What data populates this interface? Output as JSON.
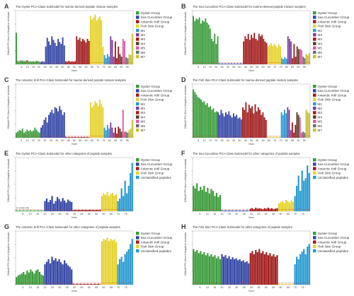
{
  "figure": {
    "panel_labels": [
      "A",
      "B",
      "C",
      "D",
      "E",
      "F",
      "G",
      "H"
    ]
  },
  "colors": {
    "oyster": "#3a9c3a",
    "sea_cucumber": "#3346a6",
    "krill": "#a01c1c",
    "fish_skin": "#e6d22c",
    "unclassified": "#2a9bd0",
    "M1": "#2a9bd0",
    "M2": "#7b3fa0",
    "M3": "#a01c1c",
    "M4": "#5b3a2a",
    "M5": "#d85aa8",
    "M6": "#6e6e6e",
    "M7": "#c7c136",
    "cutoff": "#d23a3a"
  },
  "legend_sets": {
    "mix": [
      "Oyster Group",
      "Sea Cucumber Group",
      "Antarctic Krill Group",
      "Fish Skin Group",
      "M1",
      "M2",
      "M3",
      "M4",
      "M5",
      "M6",
      "M7"
    ],
    "pep": [
      "Oyster Group",
      "Sea Cucumber Group",
      "Antarctic Krill Group",
      "Fish Skin Group",
      "Unclassified peptides"
    ]
  },
  "chart_data": [
    {
      "panel": "A",
      "type": "bar",
      "title": "The Oyster PCA-Class Submodel for marine-derived peptide mixture samples",
      "ylabel": "DModX^PS (Norm) Negative residuals",
      "xlabel": "Num",
      "legend": "mix",
      "cutoff_label": "D-Crit(0.05)",
      "segments": [
        {
          "group": "oyster",
          "values": [
            0.62,
            0.06,
            0.05,
            0.07,
            0.06,
            0.05,
            0.06,
            0.07,
            0.05,
            0.06,
            0.05,
            0.06,
            0.05,
            0.07,
            0.06,
            0.05
          ]
        },
        {
          "group": "sea_cucumber",
          "values": [
            0.05,
            0.06,
            0.05,
            0.35,
            0.52,
            0.45,
            0.38,
            0.55,
            0.48,
            0.42,
            0.36,
            0.5,
            0.44,
            0.4,
            0.53,
            0.37
          ]
        },
        {
          "group": "krill",
          "values": [
            0.06,
            0.05,
            0.07,
            0.05,
            0.06,
            0.05,
            0.06,
            0.55,
            0.48,
            0.52,
            0.45,
            0.5,
            0.47,
            0.43,
            0.5,
            0.46
          ]
        },
        {
          "group": "fish_skin",
          "values": [
            0.95,
            0.88,
            0.92,
            0.98,
            0.86,
            0.9,
            0.94,
            0.87,
            0.35
          ]
        },
        {
          "group": "M1",
          "values": [
            0.18,
            0.12,
            0.2,
            0.15
          ]
        },
        {
          "group": "M2",
          "values": [
            0.55,
            0.48,
            0.15
          ]
        },
        {
          "group": "M3",
          "values": [
            0.45,
            0.12,
            0.35
          ]
        },
        {
          "group": "M4",
          "values": [
            0.2,
            0.15
          ]
        },
        {
          "group": "M5",
          "values": [
            0.5,
            0.46
          ]
        },
        {
          "group": "M6",
          "values": [
            0.14,
            0.12
          ]
        },
        {
          "group": "M7",
          "values": [
            0.2,
            0.18,
            0.6
          ]
        }
      ]
    },
    {
      "panel": "B",
      "type": "bar",
      "title": "The Sea Cucumber PCA-Class Submodel for marine-derived peptide mixture samples",
      "ylabel": "DModX^PS (Norm) Negative residuals",
      "xlabel": "Num",
      "legend": "mix",
      "cutoff_label": "",
      "segments": [
        {
          "group": "oyster",
          "values": [
            0.95,
            0.85,
            0.9,
            0.88,
            0.92,
            0.8,
            0.86,
            0.84,
            0.9,
            0.82,
            0.78,
            0.7,
            0.5,
            0.45,
            0.6,
            0.4,
            0.55
          ]
        },
        {
          "group": "sea_cucumber",
          "values": [
            0.02,
            0.01,
            0.02,
            0.01,
            0.02,
            0.01,
            0.02,
            0.01,
            0.02,
            0.01,
            0.02,
            0.01,
            0.02,
            0.01,
            0.02,
            0.01
          ]
        },
        {
          "group": "krill",
          "values": [
            0.45,
            0.55,
            0.5,
            0.6,
            0.48,
            0.58,
            0.52,
            0.62,
            0.5,
            0.47,
            0.6,
            0.55,
            0.58,
            0.5,
            0.45,
            0.42
          ]
        },
        {
          "group": "fish_skin",
          "values": [
            0.35,
            0.38,
            0.42,
            0.36,
            0.4,
            0.37,
            0.33,
            0.39,
            0.35
          ]
        },
        {
          "group": "M1",
          "values": [
            0.12,
            0.1,
            0.14,
            0.11
          ]
        },
        {
          "group": "M2",
          "values": [
            0.55,
            0.5,
            0.45
          ]
        },
        {
          "group": "M3",
          "values": [
            0.12,
            0.4,
            0.15
          ]
        },
        {
          "group": "M4",
          "values": [
            0.35,
            0.3
          ]
        },
        {
          "group": "M5",
          "values": [
            0.3,
            0.28
          ]
        },
        {
          "group": "M6",
          "values": [
            0.15,
            0.12
          ]
        },
        {
          "group": "M7",
          "values": [
            0.2,
            0.18,
            0.22
          ]
        }
      ]
    },
    {
      "panel": "C",
      "type": "bar",
      "title": "The Antarctic Krill PCA-Class Submodel for marine-derived peptide mixture samples",
      "ylabel": "DModX^PS (Norm) Negative residuals",
      "xlabel": "Num",
      "legend": "mix",
      "cutoff_label": "",
      "segments": [
        {
          "group": "oyster",
          "values": [
            0.1,
            0.12,
            0.15,
            0.14,
            0.18,
            0.1,
            0.12,
            0.16,
            0.13,
            0.15,
            0.12,
            0.14,
            0.2,
            0.16,
            0.12,
            0.1
          ]
        },
        {
          "group": "sea_cucumber",
          "values": [
            0.2,
            0.25,
            0.35,
            0.4,
            0.3,
            0.45,
            0.5,
            0.55,
            0.48,
            0.6,
            0.58,
            0.52,
            0.62,
            0.55,
            0.45,
            0.5
          ]
        },
        {
          "group": "krill",
          "values": [
            0.02,
            0.01,
            0.02,
            0.01,
            0.02,
            0.01,
            0.02,
            0.01,
            0.02,
            0.01,
            0.02,
            0.01,
            0.02,
            0.01,
            0.02,
            0.01
          ]
        },
        {
          "group": "fish_skin",
          "values": [
            0.7,
            0.6,
            0.65,
            0.72,
            0.68,
            0.62,
            0.75,
            0.66,
            0.6
          ]
        },
        {
          "group": "M1",
          "values": [
            0.2,
            0.15,
            0.25,
            0.18
          ]
        },
        {
          "group": "M2",
          "values": [
            0.3,
            0.2,
            0.1
          ]
        },
        {
          "group": "M3",
          "values": [
            0.2,
            0.08,
            0.22
          ]
        },
        {
          "group": "M4",
          "values": [
            0.18,
            0.12
          ]
        },
        {
          "group": "M5",
          "values": [
            0.55,
            0.12
          ]
        },
        {
          "group": "M6",
          "values": [
            0.12,
            0.1
          ]
        },
        {
          "group": "M7",
          "values": [
            0.15,
            0.18,
            0.35
          ]
        }
      ]
    },
    {
      "panel": "D",
      "type": "bar",
      "title": "The Fish Skin PCA-Class Submodel for marine-derived peptide mixture samples",
      "ylabel": "DModX^PS (Norm) Negative residuals",
      "xlabel": "Num",
      "legend": "mix",
      "cutoff_label": "",
      "segments": [
        {
          "group": "oyster",
          "values": [
            0.95,
            0.9,
            0.85,
            0.8,
            0.78,
            0.75,
            0.7,
            0.72,
            0.65,
            0.68,
            0.6,
            0.62,
            0.55,
            0.58,
            0.5,
            0.52
          ]
        },
        {
          "group": "sea_cucumber",
          "values": [
            0.5,
            0.45,
            0.55,
            0.48,
            0.42,
            0.5,
            0.46,
            0.52,
            0.44,
            0.4,
            0.48,
            0.42,
            0.45,
            0.38,
            0.4,
            0.36
          ]
        },
        {
          "group": "krill",
          "values": [
            0.6,
            0.55,
            0.7,
            0.5,
            0.65,
            0.58,
            0.62,
            0.48,
            0.66,
            0.52,
            0.6,
            0.55,
            0.45,
            0.5,
            0.4,
            0.35
          ]
        },
        {
          "group": "fish_skin",
          "values": [
            0.02,
            0.01,
            0.02,
            0.01,
            0.02,
            0.01,
            0.02,
            0.01,
            0.02
          ]
        },
        {
          "group": "M1",
          "values": [
            0.5,
            0.45,
            0.55,
            0.48
          ]
        },
        {
          "group": "M2",
          "values": [
            0.6,
            0.55,
            0.15
          ]
        },
        {
          "group": "M3",
          "values": [
            0.3,
            0.1,
            0.25
          ]
        },
        {
          "group": "M4",
          "values": [
            0.5,
            0.45
          ]
        },
        {
          "group": "M5",
          "values": [
            0.4,
            0.1
          ]
        },
        {
          "group": "M6",
          "values": [
            0.12,
            0.1
          ]
        },
        {
          "group": "M7",
          "values": [
            0.55,
            0.5,
            0.48
          ]
        }
      ]
    },
    {
      "panel": "E",
      "type": "bar",
      "title": "The Oyster PCA-Class Submodel for other categories of peptide samples",
      "ylabel": "DModX^PS (Norm) Negative residuals",
      "xlabel": "Num",
      "legend": "pep",
      "cutoff_label": "D-Crit(0.05)",
      "segments": [
        {
          "group": "oyster",
          "values": [
            0.02,
            0.01,
            0.02,
            0.01,
            0.02,
            0.01,
            0.02,
            0.01,
            0.02,
            0.01,
            0.02,
            0.01,
            0.02,
            0.01,
            0.02,
            0.01
          ]
        },
        {
          "group": "sea_cucumber",
          "values": [
            0.2,
            0.25,
            0.18,
            0.22,
            0.3,
            0.15,
            0.2,
            0.28,
            0.24,
            0.19,
            0.26,
            0.21,
            0.17,
            0.23,
            0.2,
            0.18
          ]
        },
        {
          "group": "krill",
          "values": [
            0.02,
            0.03,
            0.02,
            0.03,
            0.02,
            0.03,
            0.02,
            0.03,
            0.02,
            0.03,
            0.02,
            0.03,
            0.02,
            0.03,
            0.02,
            0.03
          ]
        },
        {
          "group": "fish_skin",
          "values": [
            0.3,
            0.35,
            0.32,
            0.38,
            0.3,
            0.34,
            0.36,
            0.31,
            0.33
          ]
        },
        {
          "group": "unclassified",
          "values": [
            0.2,
            0.25,
            0.45,
            0.3,
            0.6,
            0.35,
            0.5,
            0.75,
            0.95
          ]
        }
      ]
    },
    {
      "panel": "F",
      "type": "bar",
      "title": "The Sea Cucumber PCA-Class Submodel for other categories of peptide samples",
      "ylabel": "DModX^PS (Norm) Negative residuals",
      "xlabel": "Num",
      "legend": "pep",
      "cutoff_label": "",
      "segments": [
        {
          "group": "oyster",
          "values": [
            0.5,
            0.45,
            0.55,
            0.4,
            0.48,
            0.42,
            0.5,
            0.38,
            0.46,
            0.35,
            0.44,
            0.4,
            0.3,
            0.36,
            0.28,
            0.32
          ]
        },
        {
          "group": "sea_cucumber",
          "values": [
            0.02,
            0.01,
            0.02,
            0.01,
            0.02,
            0.01,
            0.02,
            0.01,
            0.02,
            0.01,
            0.02,
            0.01,
            0.02,
            0.01,
            0.02,
            0.01
          ]
        },
        {
          "group": "krill",
          "values": [
            0.05,
            0.06,
            0.04,
            0.07,
            0.05,
            0.06,
            0.05,
            0.04,
            0.06,
            0.05,
            0.07,
            0.05,
            0.06,
            0.04,
            0.05,
            0.06
          ]
        },
        {
          "group": "fish_skin",
          "values": [
            0.15,
            0.18,
            0.2,
            0.16,
            0.22,
            0.19,
            0.17,
            0.21,
            0.18
          ]
        },
        {
          "group": "unclassified",
          "values": [
            0.3,
            0.5,
            0.7,
            0.4,
            0.8,
            0.6,
            0.65,
            0.9,
            0.75
          ]
        }
      ]
    },
    {
      "panel": "G",
      "type": "bar",
      "title": "The Antarctic Krill PCA-Class Submodel for other categories of peptide samples",
      "ylabel": "DModX^PS (Norm) Negative residuals",
      "xlabel": "Num",
      "legend": "pep",
      "cutoff_label": "",
      "segments": [
        {
          "group": "oyster",
          "values": [
            0.15,
            0.18,
            0.2,
            0.22,
            0.25,
            0.2,
            0.28,
            0.24,
            0.3,
            0.26,
            0.22,
            0.28,
            0.3,
            0.25,
            0.2,
            0.18
          ]
        },
        {
          "group": "sea_cucumber",
          "values": [
            0.4,
            0.45,
            0.5,
            0.42,
            0.55,
            0.48,
            0.52,
            0.46,
            0.5,
            0.44,
            0.4,
            0.48,
            0.42,
            0.38,
            0.35,
            0.3
          ]
        },
        {
          "group": "krill",
          "values": [
            0.02,
            0.01,
            0.02,
            0.01,
            0.02,
            0.01,
            0.02,
            0.01,
            0.02,
            0.01,
            0.02,
            0.01,
            0.02,
            0.01,
            0.02,
            0.01
          ]
        },
        {
          "group": "fish_skin",
          "values": [
            0.85,
            0.9,
            0.88,
            0.92,
            0.86,
            0.9,
            0.87,
            0.89,
            0.84
          ]
        },
        {
          "group": "unclassified",
          "values": [
            0.4,
            0.5,
            0.55,
            0.45,
            0.6,
            0.65,
            0.7,
            0.8,
            0.9
          ]
        }
      ]
    },
    {
      "panel": "H",
      "type": "bar",
      "title": "The Fish Skin PCA-Class Submodel for other categories of peptide samples",
      "ylabel": "DModX^PS (Norm) Negative residuals",
      "xlabel": "Num",
      "legend": "pep",
      "cutoff_label": "",
      "segments": [
        {
          "group": "oyster",
          "values": [
            0.7,
            0.65,
            0.68,
            0.62,
            0.66,
            0.6,
            0.64,
            0.58,
            0.62,
            0.56,
            0.6,
            0.55,
            0.58,
            0.52,
            0.56,
            0.5
          ]
        },
        {
          "group": "sea_cucumber",
          "values": [
            0.6,
            0.55,
            0.58,
            0.52,
            0.56,
            0.5,
            0.54,
            0.5,
            0.52,
            0.48,
            0.5,
            0.46,
            0.48,
            0.44,
            0.46,
            0.42
          ]
        },
        {
          "group": "krill",
          "values": [
            0.62,
            0.66,
            0.6,
            0.68,
            0.64,
            0.7,
            0.62,
            0.66,
            0.6,
            0.64,
            0.58,
            0.62,
            0.56,
            0.6,
            0.55,
            0.58
          ]
        },
        {
          "group": "fish_skin",
          "values": [
            0.02,
            0.01,
            0.02,
            0.01,
            0.02,
            0.01,
            0.02,
            0.01,
            0.02
          ]
        },
        {
          "group": "unclassified",
          "values": [
            0.4,
            0.55,
            0.5,
            0.6,
            0.65,
            0.7,
            0.6,
            0.75,
            0.8
          ]
        }
      ]
    }
  ],
  "axis_ticks": {
    "x_mix": [
      "5",
      "10",
      "15",
      "20",
      "25",
      "30",
      "35",
      "40",
      "45",
      "50",
      "55",
      "60",
      "65",
      "70",
      "75",
      "80",
      "85",
      "90",
      "95"
    ],
    "x_pep": [
      "5",
      "10",
      "15",
      "20",
      "25",
      "30",
      "35",
      "40",
      "45",
      "50",
      "55",
      "60",
      "65",
      "70",
      "75"
    ]
  }
}
